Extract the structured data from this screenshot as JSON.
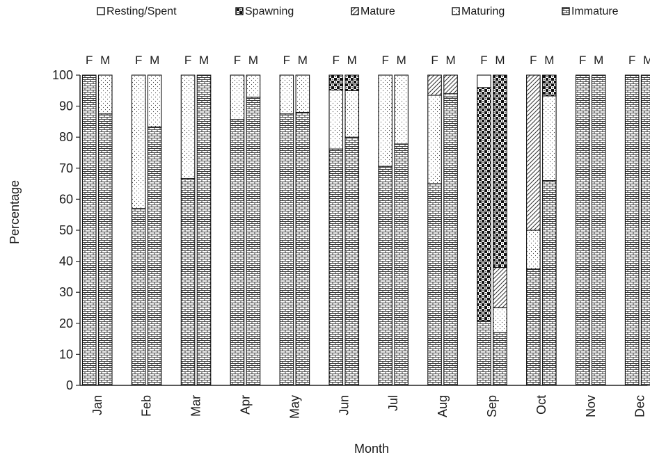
{
  "chart_data": {
    "type": "bar",
    "stacked": true,
    "ylabel": "Percentage",
    "xlabel": "Month",
    "ylim": [
      0,
      100
    ],
    "yticks": [
      0,
      10,
      20,
      30,
      40,
      50,
      60,
      70,
      80,
      90,
      100
    ],
    "grid": false,
    "legend_position": "top",
    "categories": [
      "Jan",
      "Feb",
      "Mar",
      "Apr",
      "May",
      "Jun",
      "Jul",
      "Aug",
      "Sep",
      "Oct",
      "Nov",
      "Dec"
    ],
    "bar_labels": [
      "F",
      "M"
    ],
    "stages": [
      {
        "key": "resting",
        "name": "Resting/Spent",
        "pattern": "plain"
      },
      {
        "key": "spawning",
        "name": "Spawning",
        "pattern": "checker"
      },
      {
        "key": "mature",
        "name": "Mature",
        "pattern": "diagonal"
      },
      {
        "key": "maturing",
        "name": "Maturing",
        "pattern": "dots"
      },
      {
        "key": "immature",
        "name": "Immature",
        "pattern": "brick"
      }
    ],
    "stack_order_bottom_to_top": [
      "immature",
      "maturing",
      "mature",
      "spawning",
      "resting"
    ],
    "bars": [
      {
        "month": "Jan",
        "sex": "F",
        "immature": 100,
        "maturing": 0,
        "mature": 0,
        "spawning": 0,
        "resting": 0
      },
      {
        "month": "Jan",
        "sex": "M",
        "immature": 87.5,
        "maturing": 12.5,
        "mature": 0,
        "spawning": 0,
        "resting": 0
      },
      {
        "month": "Feb",
        "sex": "F",
        "immature": 57,
        "maturing": 43,
        "mature": 0,
        "spawning": 0,
        "resting": 0
      },
      {
        "month": "Feb",
        "sex": "M",
        "immature": 83.3,
        "maturing": 16.7,
        "mature": 0,
        "spawning": 0,
        "resting": 0
      },
      {
        "month": "Mar",
        "sex": "F",
        "immature": 66.7,
        "maturing": 33.3,
        "mature": 0,
        "spawning": 0,
        "resting": 0
      },
      {
        "month": "Mar",
        "sex": "M",
        "immature": 100,
        "maturing": 0,
        "mature": 0,
        "spawning": 0,
        "resting": 0
      },
      {
        "month": "Apr",
        "sex": "F",
        "immature": 85.7,
        "maturing": 14.3,
        "mature": 0,
        "spawning": 0,
        "resting": 0
      },
      {
        "month": "Apr",
        "sex": "M",
        "immature": 92.9,
        "maturing": 7.1,
        "mature": 0,
        "spawning": 0,
        "resting": 0
      },
      {
        "month": "May",
        "sex": "F",
        "immature": 87.5,
        "maturing": 12.5,
        "mature": 0,
        "spawning": 0,
        "resting": 0
      },
      {
        "month": "May",
        "sex": "M",
        "immature": 88,
        "maturing": 12,
        "mature": 0,
        "spawning": 0,
        "resting": 0
      },
      {
        "month": "Jun",
        "sex": "F",
        "immature": 76.2,
        "maturing": 19,
        "mature": 0,
        "spawning": 4.8,
        "resting": 0
      },
      {
        "month": "Jun",
        "sex": "M",
        "immature": 80,
        "maturing": 15,
        "mature": 0,
        "spawning": 5,
        "resting": 0
      },
      {
        "month": "Jul",
        "sex": "F",
        "immature": 70.6,
        "maturing": 29.4,
        "mature": 0,
        "spawning": 0,
        "resting": 0
      },
      {
        "month": "Jul",
        "sex": "M",
        "immature": 77.8,
        "maturing": 22.2,
        "mature": 0,
        "spawning": 0,
        "resting": 0
      },
      {
        "month": "Aug",
        "sex": "F",
        "immature": 65,
        "maturing": 28.5,
        "mature": 6.5,
        "spawning": 0,
        "resting": 0
      },
      {
        "month": "Aug",
        "sex": "M",
        "immature": 93,
        "maturing": 1,
        "mature": 6,
        "spawning": 0,
        "resting": 0
      },
      {
        "month": "Sep",
        "sex": "F",
        "immature": 20.8,
        "maturing": 0,
        "mature": 0,
        "spawning": 75.2,
        "resting": 4
      },
      {
        "month": "Sep",
        "sex": "M",
        "immature": 17,
        "maturing": 8,
        "mature": 13,
        "spawning": 62,
        "resting": 0
      },
      {
        "month": "Oct",
        "sex": "F",
        "immature": 37.5,
        "maturing": 12.5,
        "mature": 50,
        "spawning": 0,
        "resting": 0
      },
      {
        "month": "Oct",
        "sex": "M",
        "immature": 66,
        "maturing": 27.3,
        "mature": 0,
        "spawning": 6.7,
        "resting": 0
      },
      {
        "month": "Nov",
        "sex": "F",
        "immature": 100,
        "maturing": 0,
        "mature": 0,
        "spawning": 0,
        "resting": 0
      },
      {
        "month": "Nov",
        "sex": "M",
        "immature": 100,
        "maturing": 0,
        "mature": 0,
        "spawning": 0,
        "resting": 0
      },
      {
        "month": "Dec",
        "sex": "F",
        "immature": 100,
        "maturing": 0,
        "mature": 0,
        "spawning": 0,
        "resting": 0
      },
      {
        "month": "Dec",
        "sex": "M",
        "immature": 100,
        "maturing": 0,
        "mature": 0,
        "spawning": 0,
        "resting": 0
      }
    ]
  }
}
